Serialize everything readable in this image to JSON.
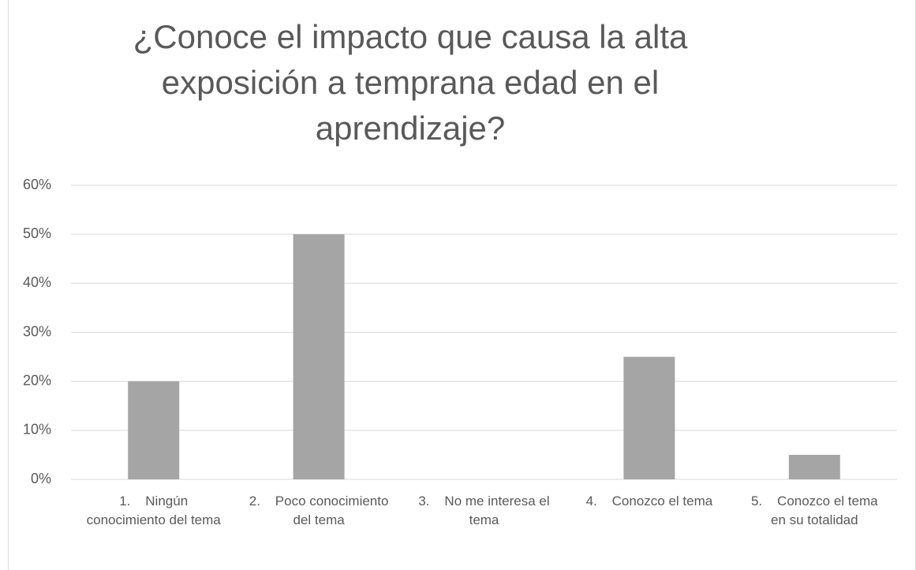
{
  "chart_data": {
    "type": "bar",
    "title": "¿Conoce el impacto que causa la alta exposición a temprana edad en el aprendizaje?",
    "categories": [
      "1.    Ningún conocimiento del tema",
      "2.    Poco conocimiento del tema",
      "3.    No me interesa el tema",
      "4.    Conozco el tema",
      "5.    Conozco el tema en su totalidad"
    ],
    "values": [
      20,
      50,
      0,
      25,
      5
    ],
    "color": "#a5a5a5",
    "ylim": [
      0,
      60
    ],
    "yticks": [
      {
        "value": 0,
        "label": "0%"
      },
      {
        "value": 10,
        "label": "10%"
      },
      {
        "value": 20,
        "label": "20%"
      },
      {
        "value": 30,
        "label": "30%"
      },
      {
        "value": 40,
        "label": "40%"
      },
      {
        "value": 50,
        "label": "50%"
      },
      {
        "value": 60,
        "label": "60%"
      }
    ],
    "grid": true
  }
}
